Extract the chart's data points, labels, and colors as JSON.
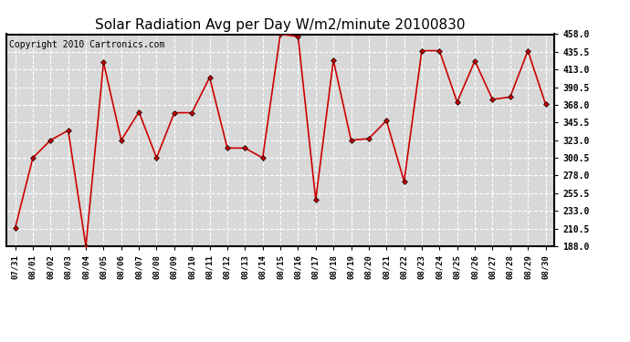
{
  "title": "Solar Radiation Avg per Day W/m2/minute 20100830",
  "copyright": "Copyright 2010 Cartronics.com",
  "dates": [
    "07/31",
    "08/01",
    "08/02",
    "08/03",
    "08/04",
    "08/05",
    "08/06",
    "08/07",
    "08/08",
    "08/09",
    "08/10",
    "08/11",
    "08/12",
    "08/13",
    "08/14",
    "08/15",
    "08/16",
    "08/17",
    "08/18",
    "08/19",
    "08/20",
    "08/21",
    "08/22",
    "08/23",
    "08/24",
    "08/25",
    "08/26",
    "08/27",
    "08/28",
    "08/29",
    "08/30"
  ],
  "values": [
    211.0,
    300.5,
    323.0,
    335.5,
    188.0,
    422.0,
    323.0,
    359.0,
    300.5,
    358.0,
    358.0,
    403.0,
    313.0,
    313.0,
    300.5,
    458.0,
    455.0,
    247.0,
    425.0,
    323.0,
    325.0,
    348.0,
    270.5,
    437.0,
    437.0,
    371.5,
    424.0,
    375.0,
    378.0,
    437.0,
    369.0
  ],
  "line_color": "#cc0000",
  "marker": "D",
  "marker_size": 3,
  "marker_color": "#000000",
  "bg_color": "#ffffff",
  "plot_bg_color": "#d8d8d8",
  "grid_color": "#ffffff",
  "ylim": [
    188.0,
    458.0
  ],
  "yticks": [
    188.0,
    210.5,
    233.0,
    255.5,
    278.0,
    300.5,
    323.0,
    345.5,
    368.0,
    390.5,
    413.0,
    435.5,
    458.0
  ],
  "title_fontsize": 11,
  "copyright_fontsize": 7
}
